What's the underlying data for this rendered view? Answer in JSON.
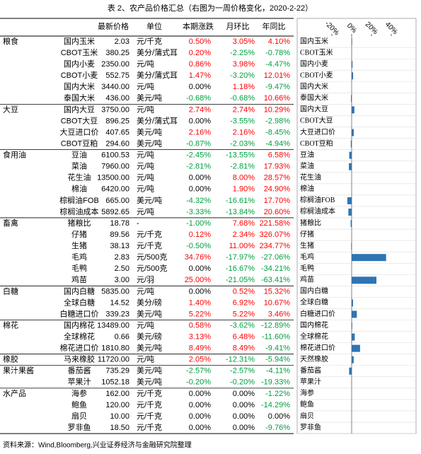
{
  "title": "表 2、农产品价格汇总（右图为一周价格变化，2020-2-22）",
  "table": {
    "headers": [
      "最新价格",
      "单位",
      "本期涨跌",
      "月环比",
      "年同比"
    ],
    "groups": [
      {
        "name": "粮食",
        "rows": [
          [
            "国内玉米",
            "2.03",
            "元/千克",
            "0.50%",
            "3.05%",
            "4.10%"
          ],
          [
            "CBOT玉米",
            "380.25",
            "美分/蒲式耳",
            "0.20%",
            "-2.25%",
            "-0.78%"
          ],
          [
            "国内小麦",
            "2350.00",
            "元/吨",
            "0.86%",
            "3.98%",
            "-4.47%"
          ],
          [
            "CBOT小麦",
            "552.75",
            "美分/蒲式耳",
            "1.47%",
            "-3.20%",
            "12.01%"
          ],
          [
            "国内大米",
            "3440.00",
            "元/吨",
            "0.00%",
            "1.18%",
            "-9.47%"
          ],
          [
            "泰国大米",
            "436.00",
            "美元/吨",
            "-0.68%",
            "-0.68%",
            "10.66%"
          ]
        ]
      },
      {
        "name": "大豆",
        "rows": [
          [
            "国内大豆",
            "3750.00",
            "元/吨",
            "2.74%",
            "2.74%",
            "10.29%"
          ],
          [
            "CBOT大豆",
            "896.25",
            "美分/蒲式耳",
            "0.00%",
            "-3.55%",
            "-2.98%"
          ],
          [
            "大豆进口价",
            "407.65",
            "美元/吨",
            "2.16%",
            "2.16%",
            "-8.45%"
          ],
          [
            "CBOT豆粕",
            "294.60",
            "美元/吨",
            "-0.87%",
            "-2.03%",
            "-4.94%"
          ]
        ]
      },
      {
        "name": "食用油",
        "rows": [
          [
            "豆油",
            "6100.53",
            "元/吨",
            "-2.45%",
            "-13.55%",
            "6.58%"
          ],
          [
            "菜油",
            "7960.00",
            "元/吨",
            "-2.81%",
            "-2.81%",
            "17.93%"
          ],
          [
            "花生油",
            "13500.00",
            "元/吨",
            "0.00%",
            "8.00%",
            "28.57%"
          ],
          [
            "棉油",
            "6420.00",
            "元/吨",
            "0.00%",
            "1.90%",
            "24.90%"
          ],
          [
            "棕榈油FOB",
            "665.00",
            "美元/吨",
            "-4.32%",
            "-16.61%",
            "17.70%"
          ],
          [
            "棕榈油成本",
            "5892.65",
            "元/吨",
            "-3.33%",
            "-13.84%",
            "20.60%"
          ]
        ]
      },
      {
        "name": "畜禽",
        "rows": [
          [
            "猪粮比",
            "18.78",
            "-",
            "-1.00%",
            "7.68%",
            "221.58%"
          ],
          [
            "仔猪",
            "89.56",
            "元/千克",
            "0.12%",
            "2.34%",
            "326.07%"
          ],
          [
            "生猪",
            "38.13",
            "元/千克",
            "-0.50%",
            "11.00%",
            "234.77%"
          ],
          [
            "毛鸡",
            "2.83",
            "元/500克",
            "34.76%",
            "-17.97%",
            "-27.06%"
          ],
          [
            "毛鸭",
            "2.50",
            "元/500克",
            "0.00%",
            "-16.67%",
            "-34.21%"
          ],
          [
            "鸡苗",
            "3.00",
            "元/羽",
            "25.00%",
            "-21.05%",
            "-63.41%"
          ]
        ]
      },
      {
        "name": "白糖",
        "rows": [
          [
            "国内白糖",
            "5835.00",
            "元/吨",
            "0.00%",
            "0.52%",
            "15.32%"
          ],
          [
            "全球白糖",
            "14.52",
            "美分/磅",
            "1.40%",
            "6.92%",
            "10.67%"
          ],
          [
            "白糖进口价",
            "339.23",
            "美元/吨",
            "5.22%",
            "5.22%",
            "3.46%"
          ]
        ]
      },
      {
        "name": "棉花",
        "rows": [
          [
            "国内棉花",
            "13489.00",
            "元/吨",
            "0.58%",
            "-3.62%",
            "-12.89%"
          ],
          [
            "全球棉花",
            "0.66",
            "美元/磅",
            "3.13%",
            "6.48%",
            "-11.60%"
          ],
          [
            "棉花进口价",
            "1810.80",
            "美元/吨",
            "8.49%",
            "8.49%",
            "-9.41%"
          ]
        ]
      },
      {
        "name": "橡胶",
        "rows": [
          [
            "马来橡胶",
            "11720.00",
            "元/吨",
            "2.05%",
            "-12.31%",
            "-5.94%"
          ]
        ]
      },
      {
        "name": "果汁果酱",
        "rows": [
          [
            "番茄酱",
            "735.29",
            "美元/吨",
            "-2.57%",
            "-2.57%",
            "-4.11%"
          ],
          [
            "苹果汁",
            "1052.18",
            "美元/吨",
            "-0.20%",
            "-0.20%",
            "-19.33%"
          ]
        ]
      },
      {
        "name": "水产品",
        "rows": [
          [
            "海参",
            "162.00",
            "元/千克",
            "0.00%",
            "0.00%",
            "-1.22%"
          ],
          [
            "鲍鱼",
            "120.00",
            "元/千克",
            "0.00%",
            "0.00%",
            "-14.29%"
          ],
          [
            "扇贝",
            "10.00",
            "元/千克",
            "0.00%",
            "0.00%",
            "0.00%"
          ],
          [
            "罗非鱼",
            "18.50",
            "元/千克",
            "0.00%",
            "0.00%",
            "-9.76%"
          ]
        ]
      }
    ]
  },
  "chart_data": {
    "type": "bar",
    "orientation": "horizontal",
    "color": "#2e75b6",
    "categories": [
      "国内玉米",
      "CBOT玉米",
      "国内小麦",
      "CBOT小麦",
      "国内大米",
      "泰国大米",
      "国内大豆",
      "CBOT大豆",
      "大豆进口价",
      "CBOT豆粕",
      "豆油",
      "菜油",
      "花生油",
      "棉油",
      "棕榈油FOB",
      "棕榈油成本",
      "猪粮比",
      "仔猪",
      "生猪",
      "毛鸡",
      "毛鸭",
      "鸡苗",
      "国内白糖",
      "全球白糖",
      "白糖进口价",
      "国内棉花",
      "全球棉花",
      "棉花进口价",
      "天然橡胶",
      "番茄酱",
      "苹果汁",
      "海参",
      "鲍鱼",
      "扇贝",
      "罗非鱼"
    ],
    "values": [
      0.5,
      0.2,
      0.86,
      1.47,
      0.0,
      -0.68,
      2.74,
      0.0,
      2.16,
      -0.87,
      -2.45,
      -2.81,
      0.0,
      0.0,
      -4.32,
      -3.33,
      -1.0,
      0.12,
      -0.5,
      34.76,
      0.0,
      25.0,
      0.0,
      1.4,
      5.22,
      0.58,
      3.13,
      8.49,
      2.05,
      -2.57,
      -0.2,
      0.0,
      0.0,
      0.0,
      0.0
    ],
    "xlim": [
      -20,
      45
    ],
    "xticks": [
      {
        "value": -20,
        "label": "-20%"
      },
      {
        "value": 0,
        "label": "0%"
      },
      {
        "value": 20,
        "label": "20%"
      },
      {
        "value": 40,
        "label": "40%"
      }
    ]
  },
  "source": "资料来源：Wind,Bloomberg,兴业证券经济与金融研究院整理"
}
